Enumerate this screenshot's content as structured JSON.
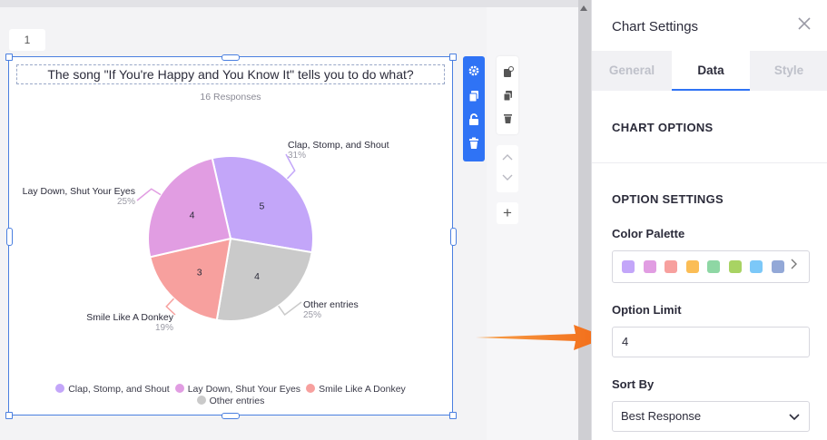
{
  "page": {
    "number": "1"
  },
  "chart": {
    "question": "The song \"If You're Happy and You Know It\" tells you to do what?",
    "responses": "16 Responses"
  },
  "chart_data": {
    "type": "pie",
    "title": "The song \"If You're Happy and You Know It\" tells you to do what?",
    "subtitle": "16 Responses",
    "slices": [
      {
        "label": "Clap, Stomp, and Shout",
        "value": 5,
        "percent": "31%",
        "color": "#c3a6f9"
      },
      {
        "label": "Other entries",
        "value": 4,
        "percent": "25%",
        "color": "#cacaca"
      },
      {
        "label": "Smile Like A Donkey",
        "value": 3,
        "percent": "19%",
        "color": "#f7a09e"
      },
      {
        "label": "Lay Down, Shut Your Eyes",
        "value": 4,
        "percent": "25%",
        "color": "#e19de2"
      }
    ],
    "legend": [
      "Clap, Stomp, and Shout",
      "Lay Down, Shut Your Eyes",
      "Smile Like A Donkey",
      "Other entries"
    ],
    "legend_position": "bottom"
  },
  "toolbar": {
    "icons": [
      "gear-icon",
      "copy-icon",
      "lock-icon",
      "trash-icon"
    ],
    "side_icons": [
      "add-page-icon",
      "duplicate-icon",
      "delete-icon"
    ],
    "nav_icons": [
      "chevron-up-icon",
      "chevron-down-icon"
    ],
    "plus": "+"
  },
  "panel": {
    "title": "Chart Settings",
    "tabs": [
      "General",
      "Data",
      "Style"
    ],
    "active_tab": "Data",
    "chart_options": "CHART OPTIONS",
    "option_settings": "OPTION SETTINGS",
    "color_palette_label": "Color Palette",
    "palette": [
      "#c3a6f9",
      "#e19de2",
      "#f7a09e",
      "#fbbd55",
      "#8ed7a4",
      "#a8d363",
      "#7cc8f8",
      "#93a8d7"
    ],
    "option_limit_label": "Option Limit",
    "option_limit_value": "4",
    "sort_by_label": "Sort By",
    "sort_by_value": "Best Response"
  }
}
